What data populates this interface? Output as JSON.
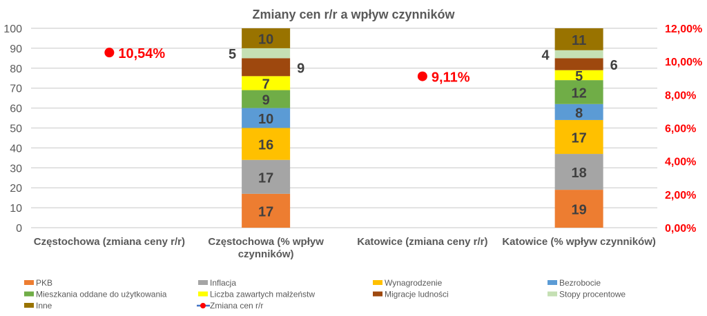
{
  "chart_data": {
    "type": "bar",
    "title": "Zmiany cen r/r a wpływ czynników",
    "categories": [
      "Częstochowa (zmiana ceny r/r)",
      "Częstochowa (% wpływ|czynników)",
      "Katowice (zmiana ceny r/r)",
      "Katowice (% wpływ czynników)"
    ],
    "ylim": [
      0,
      100
    ],
    "yticks": [
      "0",
      "10",
      "20",
      "30",
      "40",
      "50",
      "60",
      "70",
      "80",
      "90",
      "100"
    ],
    "y2lim": [
      0,
      12
    ],
    "y2ticks": [
      "0,00%",
      "2,00%",
      "4,00%",
      "6,00%",
      "8,00%",
      "10,00%",
      "12,00%"
    ],
    "series": [
      {
        "name": "PKB",
        "color": "#ED7D31",
        "values": [
          null,
          17,
          null,
          19
        ]
      },
      {
        "name": "Inflacja",
        "color": "#A5A5A5",
        "values": [
          null,
          17,
          null,
          18
        ]
      },
      {
        "name": "Wynagrodzenie",
        "color": "#FFC000",
        "values": [
          null,
          16,
          null,
          17
        ]
      },
      {
        "name": "Bezrobocie",
        "color": "#5B9BD5",
        "values": [
          null,
          10,
          null,
          8
        ]
      },
      {
        "name": "Mieszkania oddane do użytkowania",
        "color": "#70AD47",
        "values": [
          null,
          9,
          null,
          12
        ]
      },
      {
        "name": "Liczba zawartych małżeństw",
        "color": "#FFFF00",
        "values": [
          null,
          7,
          null,
          5
        ]
      },
      {
        "name": "Migracje ludności",
        "color": "#9E480E",
        "values": [
          null,
          9,
          null,
          6
        ]
      },
      {
        "name": "Stopy procentowe",
        "color": "#C5E0B4",
        "values": [
          null,
          5,
          null,
          4
        ]
      },
      {
        "name": "Inne",
        "color": "#997300",
        "values": [
          null,
          10,
          null,
          11
        ]
      }
    ],
    "line_series": {
      "name": "Zmiana cen r/r",
      "color": "#FF0000",
      "line_color": "#4472C4",
      "values": [
        10.54,
        null,
        9.11,
        null
      ],
      "labels": [
        "10,54%",
        null,
        "9,11%",
        null
      ]
    }
  }
}
